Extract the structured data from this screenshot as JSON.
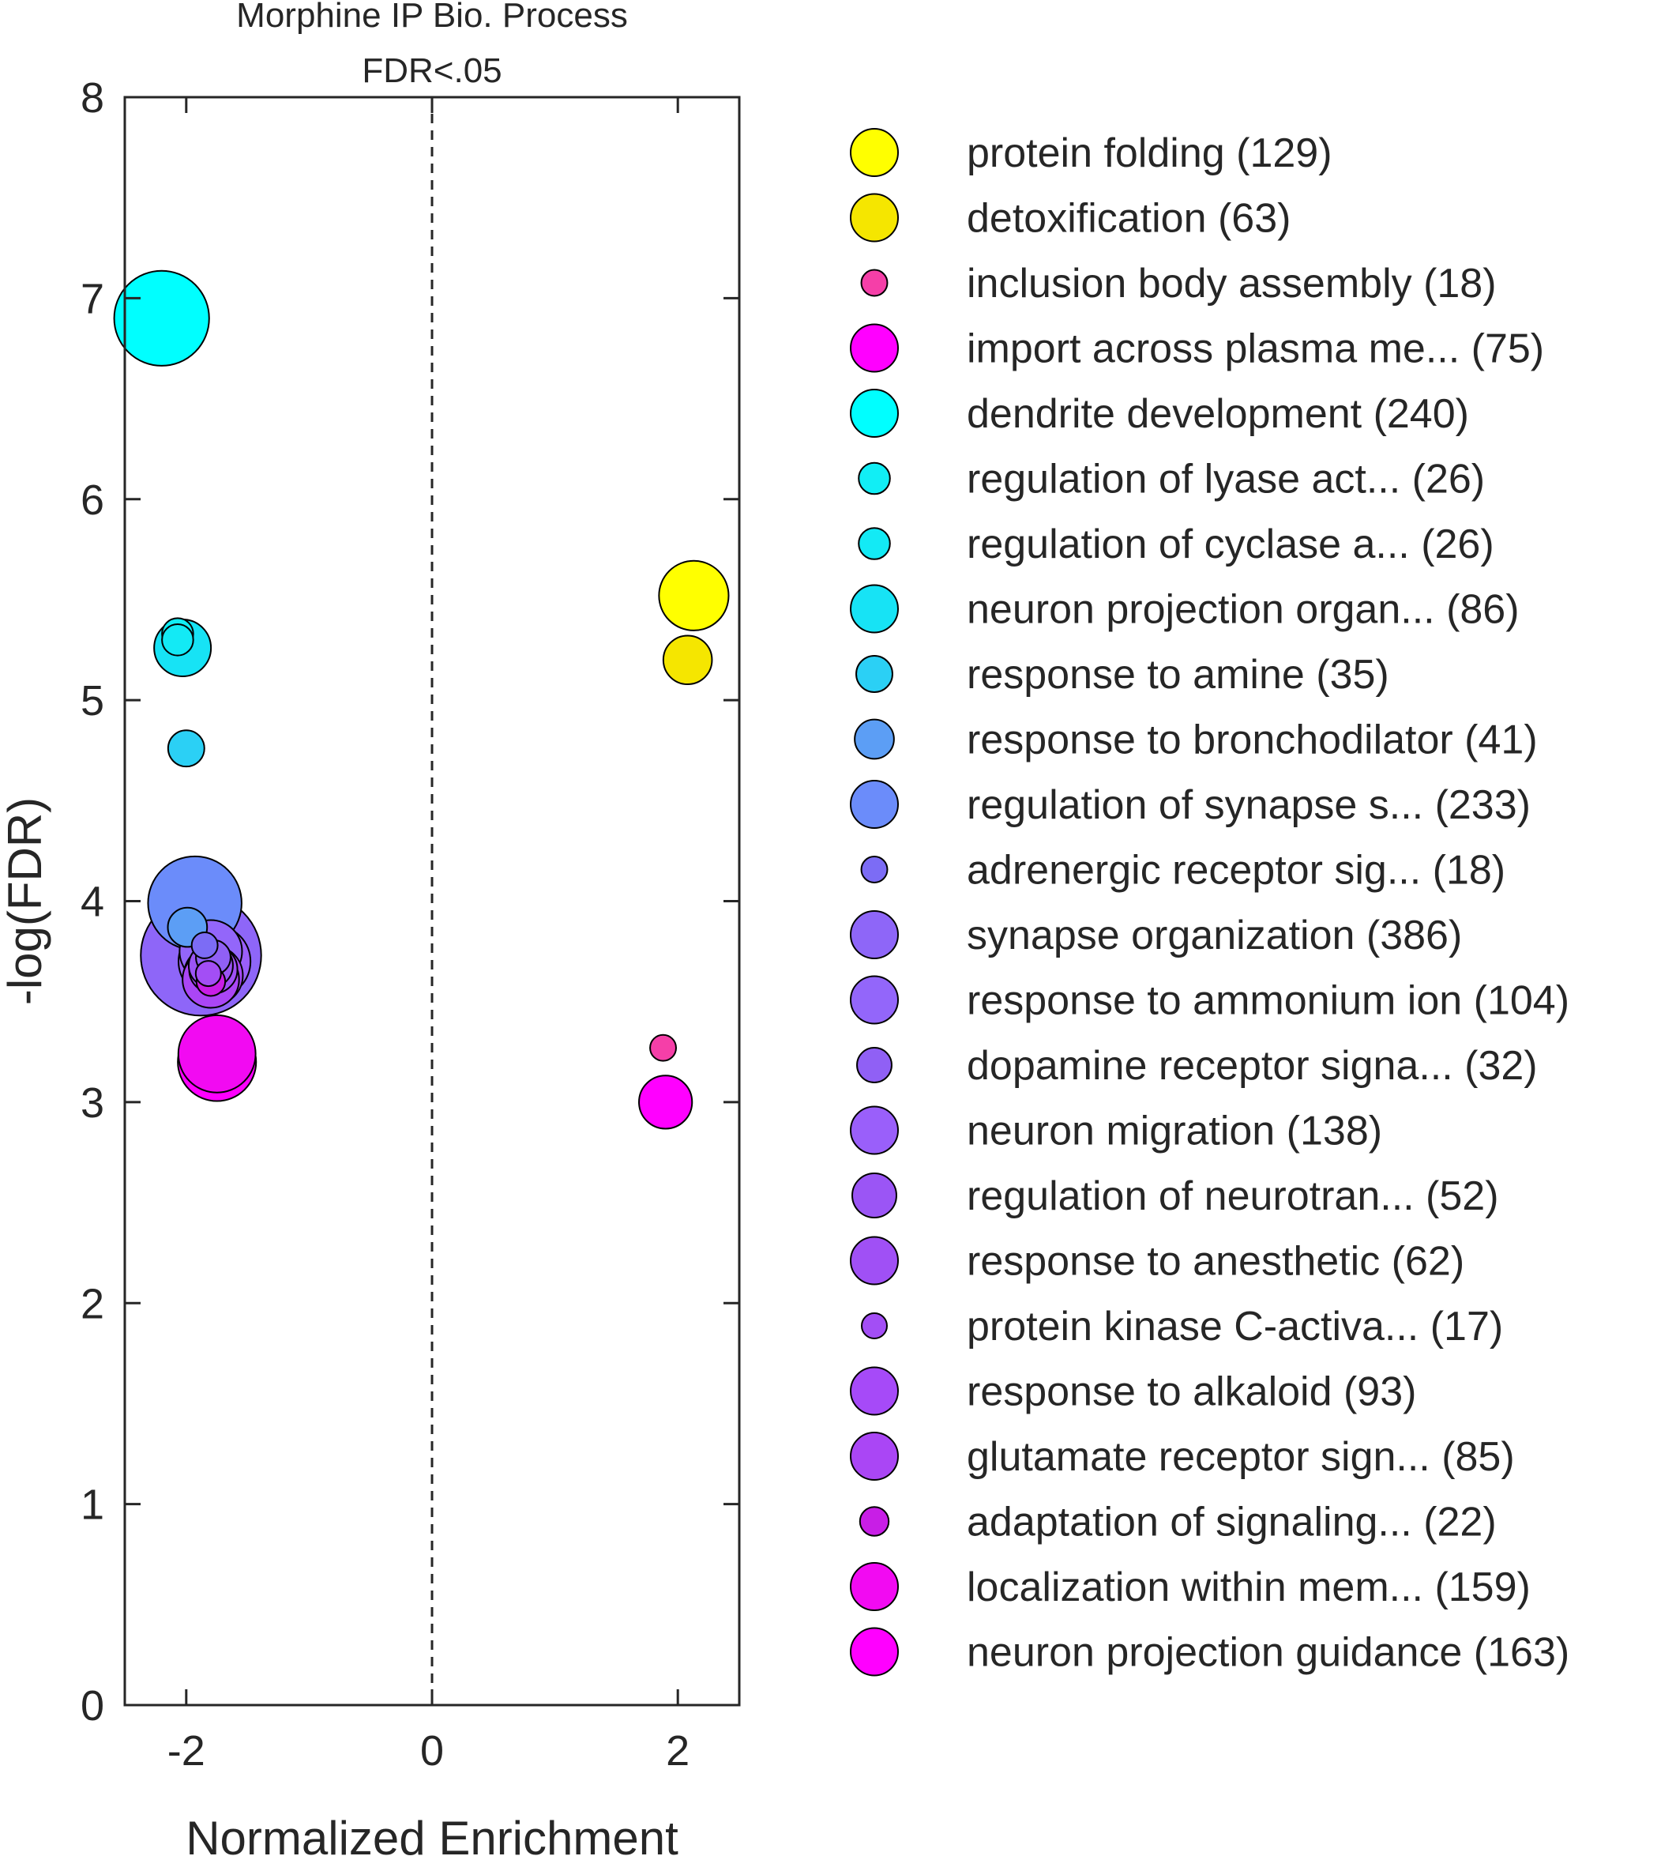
{
  "chart_data": {
    "type": "scatter",
    "title": "Morphine IP Bio. Process",
    "subtitle": "FDR<.05",
    "xlabel": "Normalized Enrichment",
    "ylabel": "-log(FDR)",
    "xlim": [
      -2.5,
      2.5
    ],
    "ylim": [
      0,
      8
    ],
    "xticks": [
      "-2",
      "0",
      "2"
    ],
    "yticks": [
      "0",
      "1",
      "2",
      "3",
      "4",
      "5",
      "6",
      "7",
      "8"
    ],
    "reference_line": {
      "x": 0,
      "style": "dashed"
    },
    "grid": false,
    "legend_position": "right",
    "series": [
      {
        "name": "protein folding (129)",
        "x": 2.13,
        "y": 5.52,
        "size": 129,
        "color": "#ffff00"
      },
      {
        "name": "detoxification (63)",
        "x": 2.08,
        "y": 5.2,
        "size": 63,
        "color": "#f5e600"
      },
      {
        "name": "inclusion body assembly (18)",
        "x": 1.88,
        "y": 3.27,
        "size": 18,
        "color": "#f53fa8"
      },
      {
        "name": "import across plasma me... (75)",
        "x": 1.9,
        "y": 3.0,
        "size": 75,
        "color": "#ff00ff"
      },
      {
        "name": "dendrite development (240)",
        "x": -2.2,
        "y": 6.9,
        "size": 240,
        "color": "#00ffff"
      },
      {
        "name": "regulation of lyase act... (26)",
        "x": -2.07,
        "y": 5.33,
        "size": 26,
        "color": "#11eef5"
      },
      {
        "name": "regulation of cyclase a... (26)",
        "x": -2.07,
        "y": 5.3,
        "size": 26,
        "color": "#13eaf5"
      },
      {
        "name": "neuron projection organ... (86)",
        "x": -2.03,
        "y": 5.26,
        "size": 86,
        "color": "#17e3f5"
      },
      {
        "name": "response to amine (35)",
        "x": -2.0,
        "y": 4.76,
        "size": 35,
        "color": "#2bd0f5"
      },
      {
        "name": "response to bronchodilator (41)",
        "x": -1.99,
        "y": 3.87,
        "size": 41,
        "color": "#5c9ef5"
      },
      {
        "name": "regulation of synapse s... (233)",
        "x": -1.93,
        "y": 3.99,
        "size": 233,
        "color": "#6b8cfa"
      },
      {
        "name": "adrenergic receptor sig... (18)",
        "x": -1.85,
        "y": 3.78,
        "size": 18,
        "color": "#7c6cf5"
      },
      {
        "name": "synapse organization (386)",
        "x": -1.88,
        "y": 3.73,
        "size": 386,
        "color": "#8e66f8"
      },
      {
        "name": "response to ammonium ion (104)",
        "x": -1.8,
        "y": 3.75,
        "size": 104,
        "color": "#9366fa"
      },
      {
        "name": "dopamine receptor signa... (32)",
        "x": -1.78,
        "y": 3.72,
        "size": 32,
        "color": "#9060f5"
      },
      {
        "name": "neuron migration (138)",
        "x": -1.77,
        "y": 3.7,
        "size": 138,
        "color": "#9a5ffa"
      },
      {
        "name": "regulation of neurotran... (52)",
        "x": -1.8,
        "y": 3.68,
        "size": 52,
        "color": "#9b55f5"
      },
      {
        "name": "response to anesthetic (62)",
        "x": -1.78,
        "y": 3.66,
        "size": 62,
        "color": "#a050f5"
      },
      {
        "name": "protein kinase C-activa... (17)",
        "x": -1.82,
        "y": 3.64,
        "size": 17,
        "color": "#a34ef5"
      },
      {
        "name": "response to alkaloid (93)",
        "x": -1.78,
        "y": 3.63,
        "size": 93,
        "color": "#a64af8"
      },
      {
        "name": "glutamate receptor sign... (85)",
        "x": -1.8,
        "y": 3.61,
        "size": 85,
        "color": "#aa46f5"
      },
      {
        "name": "adaptation of signaling... (22)",
        "x": -1.8,
        "y": 3.6,
        "size": 22,
        "color": "#c81ee6"
      },
      {
        "name": "localization within mem... (159)",
        "x": -1.75,
        "y": 3.24,
        "size": 159,
        "color": "#f20af2"
      },
      {
        "name": "neuron projection guidance (163)",
        "x": -1.75,
        "y": 3.2,
        "size": 163,
        "color": "#ff00ff"
      }
    ]
  }
}
